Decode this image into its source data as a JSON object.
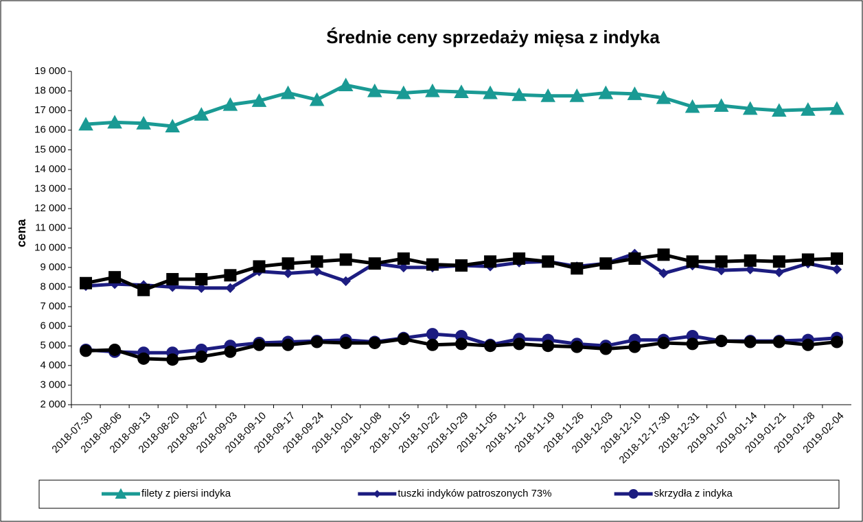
{
  "chart_data": {
    "type": "line",
    "title": "Średnie ceny sprzedaży mięsa z indyka",
    "y_label": "cena",
    "categories": [
      "2018-07-30",
      "2018-08-06",
      "2018-08-13",
      "2018-08-20",
      "2018-08-27",
      "2018-09-03",
      "2018-09-10",
      "2018-09-17",
      "2018-09-24",
      "2018-10-01",
      "2018-10-08",
      "2018-10-15",
      "2018-10-22",
      "2018-10-29",
      "2018-11-05",
      "2018-11-12",
      "2018-11-19",
      "2018-11-26",
      "2018-12-03",
      "2018-12-10",
      "2018-12-17-30",
      "2018-12-31",
      "2019-01-07",
      "2019-01-14",
      "2019-01-21",
      "2019-01-28",
      "2019-02-04"
    ],
    "series": [
      {
        "name": "filety z piersi indyka",
        "color": "#1a9a94",
        "marker": "triangle",
        "values": [
          16300,
          16400,
          16350,
          16200,
          16800,
          17300,
          17500,
          17900,
          17550,
          18300,
          18000,
          17900,
          18000,
          17950,
          17900,
          17800,
          17750,
          17750,
          17900,
          17850,
          17650,
          17200,
          17250,
          17100,
          17000,
          17050,
          17100
        ]
      },
      {
        "name": "tuszki indyków patroszonych 73%",
        "color": "#1c1c80",
        "marker": "diamond",
        "values": [
          8050,
          8150,
          8100,
          8000,
          7950,
          7950,
          8800,
          8700,
          8800,
          8300,
          9200,
          9000,
          9000,
          9100,
          9050,
          9250,
          9300,
          9050,
          9200,
          9700,
          8700,
          9100,
          8850,
          8900,
          8750,
          9200,
          8900
        ]
      },
      {
        "color": "#000000",
        "marker": "square",
        "values": [
          8200,
          8500,
          7850,
          8400,
          8400,
          8600,
          9050,
          9200,
          9300,
          9400,
          9200,
          9450,
          9150,
          9100,
          9300,
          9450,
          9300,
          8950,
          9200,
          9450,
          9650,
          9300,
          9300,
          9350,
          9300,
          9400,
          9450
        ]
      },
      {
        "name": "skrzydła z indyka",
        "color": "#1c1c80",
        "marker": "circle",
        "values": [
          4800,
          4700,
          4650,
          4650,
          4800,
          5000,
          5150,
          5200,
          5250,
          5300,
          5200,
          5400,
          5600,
          5500,
          5050,
          5350,
          5300,
          5100,
          5000,
          5300,
          5300,
          5500,
          5250,
          5250,
          5250,
          5300,
          5400
        ]
      },
      {
        "color": "#000000",
        "marker": "circle",
        "values": [
          4750,
          4800,
          4350,
          4300,
          4450,
          4700,
          5050,
          5050,
          5200,
          5150,
          5150,
          5350,
          5050,
          5100,
          5000,
          5100,
          5000,
          4950,
          4850,
          4950,
          5150,
          5100,
          5250,
          5200,
          5200,
          5050,
          5200
        ]
      }
    ],
    "ylim": [
      2000,
      19000
    ],
    "yticks": [
      {
        "value": 2000,
        "label": "2 000"
      },
      {
        "value": 3000,
        "label": "3 000"
      },
      {
        "value": 4000,
        "label": "4 000"
      },
      {
        "value": 5000,
        "label": "5 000"
      },
      {
        "value": 6000,
        "label": "6 000"
      },
      {
        "value": 7000,
        "label": "7 000"
      },
      {
        "value": 8000,
        "label": "8 000"
      },
      {
        "value": 9000,
        "label": "9 000"
      },
      {
        "value": 10000,
        "label": "10 000"
      },
      {
        "value": 11000,
        "label": "11 000"
      },
      {
        "value": 12000,
        "label": "12 000"
      },
      {
        "value": 13000,
        "label": "13 000"
      },
      {
        "value": 14000,
        "label": "14 000"
      },
      {
        "value": 15000,
        "label": "15 000"
      },
      {
        "value": 16000,
        "label": "16 000"
      },
      {
        "value": 17000,
        "label": "17 000"
      },
      {
        "value": 18000,
        "label": "18 000"
      },
      {
        "value": 19000,
        "label": "19 000"
      }
    ],
    "legend": "bottom"
  }
}
